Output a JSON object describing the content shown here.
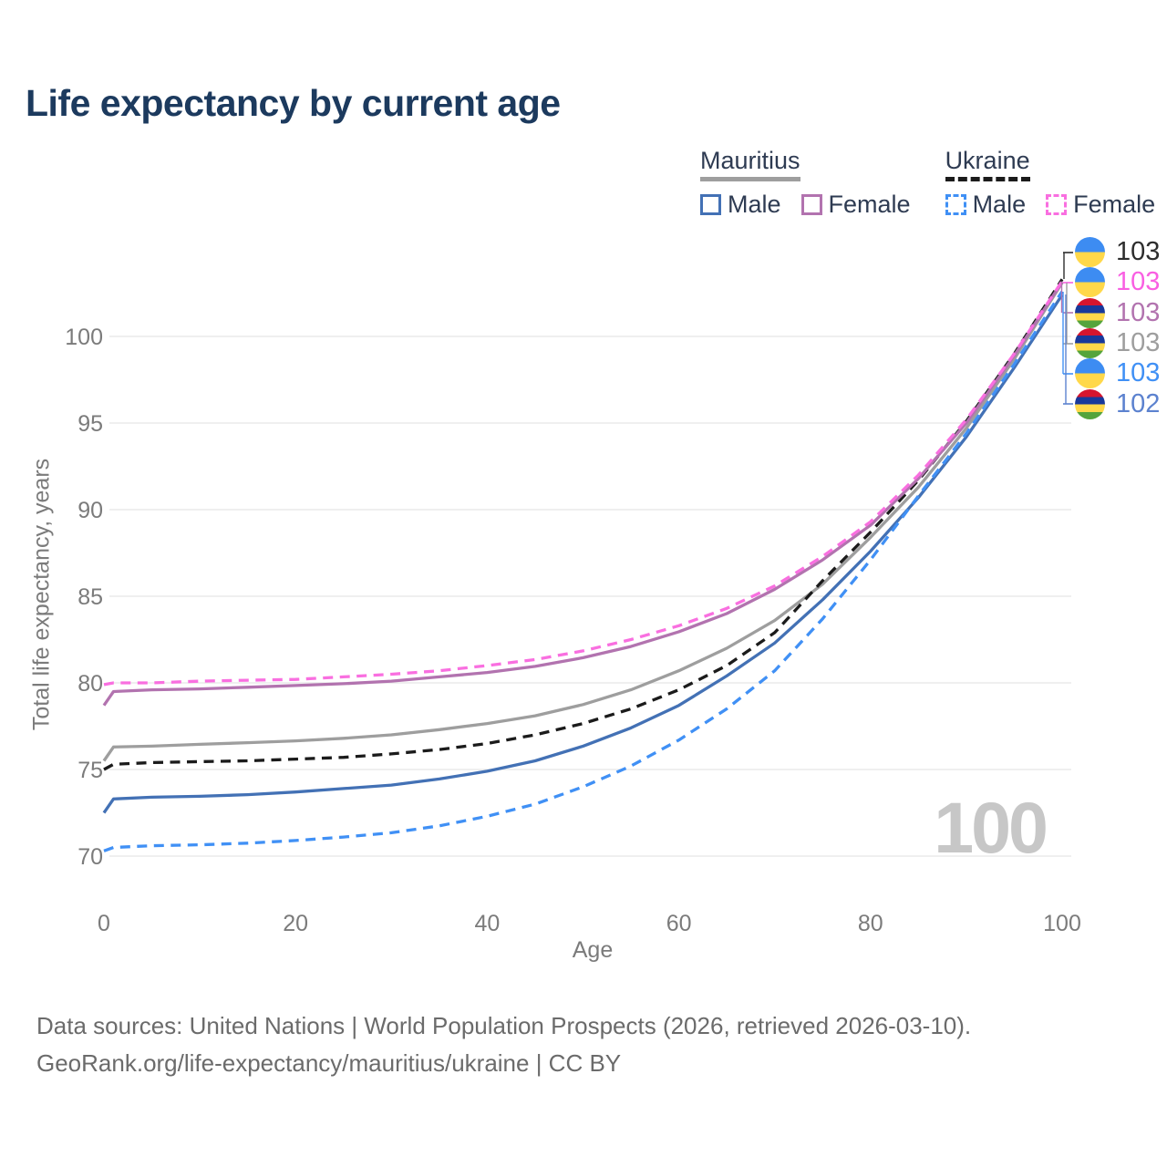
{
  "title": "Life expectancy by current age",
  "legend": {
    "groups": [
      {
        "name": "Mauritius",
        "line_style": "solid",
        "line_color": "#9e9e9e",
        "items": [
          {
            "label": "Male",
            "color": "#4371b5",
            "dashed": false
          },
          {
            "label": "Female",
            "color": "#b273af",
            "dashed": false
          }
        ]
      },
      {
        "name": "Ukraine",
        "line_style": "dashed",
        "line_color": "#1b1b1b",
        "items": [
          {
            "label": "Male",
            "color": "#4090f5",
            "dashed": true
          },
          {
            "label": "Female",
            "color": "#f96fe0",
            "dashed": true
          }
        ]
      }
    ]
  },
  "chart_data": {
    "type": "line",
    "title": "Life expectancy by current age",
    "xlabel": "Age",
    "ylabel": "Total life expectancy, years",
    "xlim": [
      0,
      100
    ],
    "ylim": [
      69.5,
      103.5
    ],
    "xticks": [
      0,
      20,
      40,
      60,
      80,
      100
    ],
    "yticks": [
      70,
      75,
      80,
      85,
      90,
      95,
      100
    ],
    "grid": true,
    "x": [
      0,
      1,
      5,
      10,
      15,
      20,
      25,
      30,
      35,
      40,
      45,
      50,
      55,
      60,
      65,
      70,
      75,
      80,
      85,
      90,
      95,
      100
    ],
    "series": [
      {
        "id": "mauritius-both",
        "name": "Mauritius (both sexes)",
        "color": "#9e9e9e",
        "dashed": false,
        "values": [
          75.5,
          76.3,
          76.35,
          76.45,
          76.55,
          76.65,
          76.8,
          77.0,
          77.3,
          77.65,
          78.1,
          78.75,
          79.6,
          80.7,
          82.0,
          83.6,
          85.7,
          88.4,
          91.3,
          94.7,
          98.7,
          103.1
        ],
        "end_value": 103
      },
      {
        "id": "ukraine-both",
        "name": "Ukraine (both sexes)",
        "color": "#1b1b1b",
        "dashed": true,
        "values": [
          75.0,
          75.3,
          75.4,
          75.45,
          75.5,
          75.6,
          75.7,
          75.9,
          76.15,
          76.5,
          77.0,
          77.65,
          78.5,
          79.6,
          81.0,
          82.9,
          85.9,
          88.7,
          91.7,
          95.1,
          99.0,
          103.3
        ],
        "end_value": 103
      },
      {
        "id": "mauritius-female",
        "name": "Mauritius Female",
        "color": "#b273af",
        "dashed": false,
        "values": [
          78.7,
          79.5,
          79.6,
          79.65,
          79.75,
          79.85,
          79.95,
          80.1,
          80.35,
          80.6,
          80.95,
          81.45,
          82.1,
          82.95,
          84.0,
          85.4,
          87.1,
          89.1,
          91.8,
          95.0,
          98.9,
          103.15
        ],
        "end_value": 103
      },
      {
        "id": "ukraine-female",
        "name": "Ukraine Female",
        "color": "#f96fe0",
        "dashed": true,
        "values": [
          79.9,
          80.0,
          80.0,
          80.1,
          80.15,
          80.2,
          80.35,
          80.5,
          80.7,
          81.0,
          81.35,
          81.85,
          82.5,
          83.3,
          84.3,
          85.6,
          87.3,
          89.3,
          92.0,
          95.2,
          99.0,
          103.2
        ],
        "end_value": 103
      },
      {
        "id": "mauritius-male",
        "name": "Mauritius Male",
        "color": "#4371b5",
        "dashed": false,
        "values": [
          72.5,
          73.3,
          73.4,
          73.45,
          73.55,
          73.7,
          73.9,
          74.1,
          74.45,
          74.9,
          75.5,
          76.35,
          77.4,
          78.7,
          80.4,
          82.3,
          84.8,
          87.6,
          90.7,
          94.2,
          98.2,
          102.4
        ],
        "end_value": 102
      },
      {
        "id": "ukraine-male",
        "name": "Ukraine Male",
        "color": "#4090f5",
        "dashed": true,
        "values": [
          70.3,
          70.5,
          70.6,
          70.65,
          70.75,
          70.9,
          71.1,
          71.35,
          71.75,
          72.3,
          73.0,
          74.0,
          75.2,
          76.7,
          78.5,
          80.7,
          83.7,
          87.1,
          90.8,
          94.4,
          98.4,
          102.6
        ],
        "end_value": 103
      }
    ],
    "legend_position": "top-right"
  },
  "end_labels": [
    {
      "flag": "ukraine",
      "value": "103",
      "color": "#2d2d2d"
    },
    {
      "flag": "ukraine",
      "value": "103",
      "color": "#f95fe2"
    },
    {
      "flag": "mauritius",
      "value": "103",
      "color": "#b273af"
    },
    {
      "flag": "mauritius",
      "value": "103",
      "color": "#9e9e9e"
    },
    {
      "flag": "ukraine",
      "value": "103",
      "color": "#4090f5"
    },
    {
      "flag": "mauritius",
      "value": "102",
      "color": "#5c82cf"
    }
  ],
  "watermark": "100",
  "footer": {
    "line1": "Data sources: United Nations | World Population Prospects (2026, retrieved 2026-03-10).",
    "line2": "GeoRank.org/life-expectancy/mauritius/ukraine | CC BY"
  }
}
